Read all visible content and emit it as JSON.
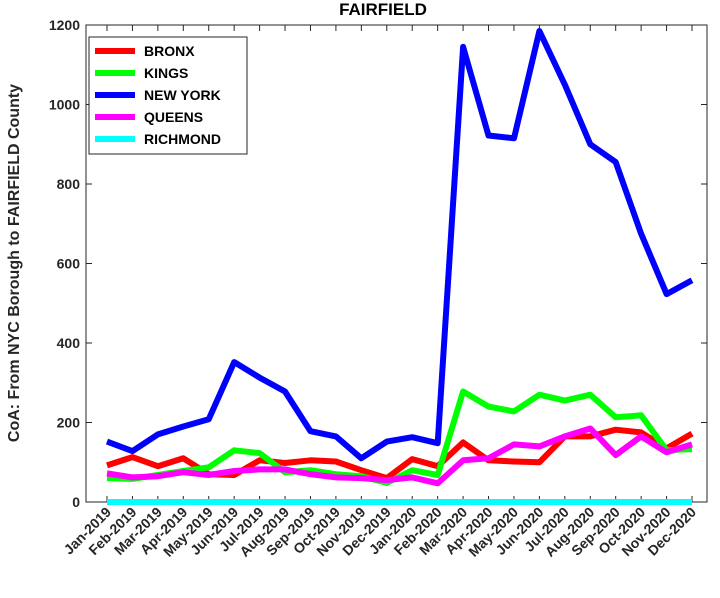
{
  "chart_data": {
    "type": "line",
    "title": "FAIRFIELD",
    "xlabel": "",
    "ylabel": "CoA: From NYC Borough to FAIRFIELD County",
    "ylim": [
      0,
      1200
    ],
    "yticks": [
      0,
      200,
      400,
      600,
      800,
      1000,
      1200
    ],
    "grid": false,
    "legend_position": "top-left",
    "categories": [
      "Jan-2019",
      "Feb-2019",
      "Mar-2019",
      "Apr-2019",
      "May-2019",
      "Jun-2019",
      "Jul-2019",
      "Aug-2019",
      "Sep-2019",
      "Oct-2019",
      "Nov-2019",
      "Dec-2019",
      "Jan-2020",
      "Feb-2020",
      "Mar-2020",
      "Apr-2020",
      "May-2020",
      "Jun-2020",
      "Jul-2020",
      "Aug-2020",
      "Sep-2020",
      "Oct-2020",
      "Nov-2020",
      "Dec-2020"
    ],
    "series": [
      {
        "name": "BRONX",
        "color": "#ff0000",
        "values": [
          92,
          113,
          90,
          110,
          70,
          68,
          105,
          98,
          105,
          102,
          80,
          60,
          108,
          90,
          150,
          105,
          102,
          100,
          165,
          165,
          182,
          175,
          135,
          172
        ]
      },
      {
        "name": "KINGS",
        "color": "#00ff00",
        "values": [
          60,
          58,
          68,
          78,
          87,
          130,
          123,
          75,
          80,
          70,
          65,
          48,
          80,
          68,
          278,
          240,
          228,
          270,
          255,
          270,
          213,
          218,
          130,
          133
        ]
      },
      {
        "name": "NEW YORK",
        "color": "#0000ff",
        "values": [
          152,
          128,
          170,
          190,
          208,
          352,
          313,
          278,
          178,
          165,
          110,
          152,
          163,
          148,
          1145,
          922,
          915,
          1185,
          1050,
          900,
          855,
          675,
          523,
          558
        ]
      },
      {
        "name": "QUEENS",
        "color": "#ff00ff",
        "values": [
          72,
          62,
          65,
          75,
          68,
          78,
          82,
          82,
          70,
          62,
          60,
          55,
          62,
          47,
          105,
          110,
          145,
          140,
          165,
          185,
          118,
          165,
          125,
          145
        ]
      },
      {
        "name": "RICHMOND",
        "color": "#00ffff",
        "values": [
          0,
          0,
          0,
          0,
          0,
          0,
          0,
          0,
          0,
          0,
          0,
          0,
          0,
          0,
          0,
          0,
          0,
          0,
          0,
          0,
          0,
          0,
          0,
          0
        ]
      }
    ]
  }
}
